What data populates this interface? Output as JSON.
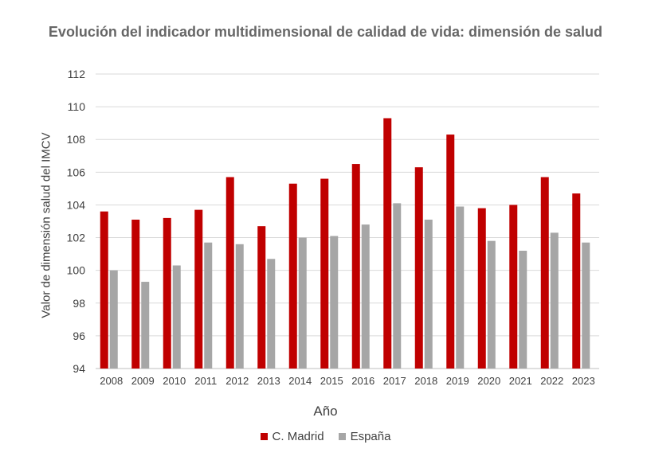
{
  "chart_data": {
    "type": "bar",
    "title": "Evolución del indicador multidimensional de calidad de vida: dimensión de salud",
    "xlabel": "Año",
    "ylabel": "Valor de dimensión salud del IMCV",
    "ylim": [
      94,
      112
    ],
    "yticks": [
      94,
      96,
      98,
      100,
      102,
      104,
      106,
      108,
      110,
      112
    ],
    "grid": true,
    "legend_position": "bottom",
    "categories": [
      "2008",
      "2009",
      "2010",
      "2011",
      "2012",
      "2013",
      "2014",
      "2015",
      "2016",
      "2017",
      "2018",
      "2019",
      "2020",
      "2021",
      "2022",
      "2023"
    ],
    "series": [
      {
        "name": "C. Madrid",
        "color": "#C00000",
        "values": [
          103.6,
          103.1,
          103.2,
          103.7,
          105.7,
          102.7,
          105.3,
          105.6,
          106.5,
          109.3,
          106.3,
          108.3,
          103.8,
          104.0,
          105.7,
          104.7
        ]
      },
      {
        "name": "España",
        "color": "#A6A6A6",
        "values": [
          100.0,
          99.3,
          100.3,
          101.7,
          101.6,
          100.7,
          102.0,
          102.1,
          102.8,
          104.1,
          103.1,
          103.9,
          101.8,
          101.2,
          102.3,
          101.7
        ]
      }
    ]
  }
}
